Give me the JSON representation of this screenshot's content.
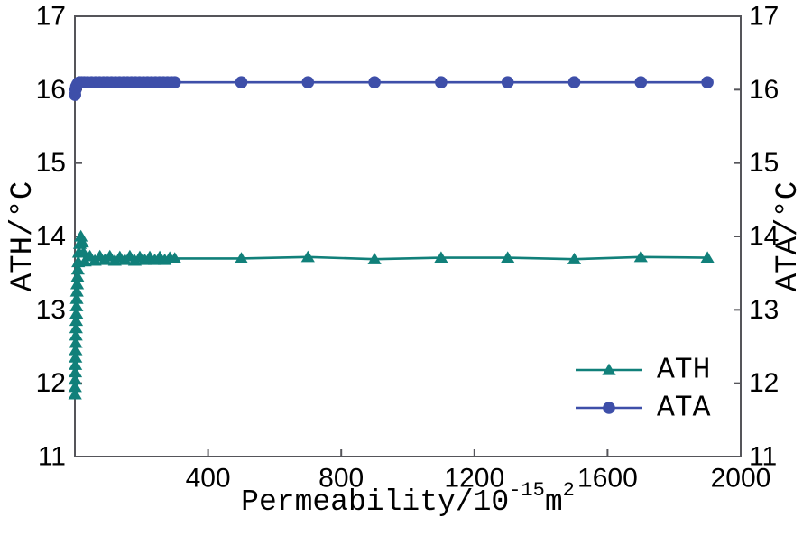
{
  "chart_data": {
    "type": "line",
    "title": "",
    "xlabel": "Permeability/10⁻¹⁵m²",
    "xlabel_parts": [
      {
        "t": "Permeability/10"
      },
      {
        "t": "-15",
        "sup": true
      },
      {
        "t": "m"
      },
      {
        "t": "2",
        "sup": true
      }
    ],
    "ylabel_left": "ATH/°C",
    "ylabel_right": "ATA/°C",
    "xlim": [
      0,
      2000
    ],
    "ylim": [
      11,
      17
    ],
    "x_ticks": [
      400,
      800,
      1200,
      1600,
      2000
    ],
    "y_ticks": [
      11,
      12,
      13,
      14,
      15,
      16,
      17
    ],
    "grid": false,
    "legend_position": "lower-right-inside",
    "series": [
      {
        "name": "ATH",
        "axis": "left",
        "marker": "triangle",
        "color": "#11807a",
        "x": [
          0.5,
          0.8,
          1.1,
          1.4,
          1.7,
          2,
          2.4,
          2.8,
          3.2,
          3.6,
          4,
          4.5,
          5,
          5.5,
          6,
          7,
          8,
          9,
          10,
          12,
          15,
          18,
          22,
          26,
          30,
          45,
          60,
          75,
          90,
          105,
          120,
          135,
          150,
          165,
          180,
          195,
          210,
          225,
          240,
          255,
          270,
          285,
          300,
          500,
          700,
          900,
          1100,
          1300,
          1500,
          1700,
          1900
        ],
        "y": [
          11.85,
          11.95,
          12.05,
          12.15,
          12.25,
          12.35,
          12.45,
          12.55,
          12.65,
          12.75,
          12.85,
          12.95,
          13.05,
          13.15,
          13.25,
          13.35,
          13.45,
          13.55,
          13.65,
          13.78,
          13.9,
          14.0,
          13.92,
          13.78,
          13.66,
          13.73,
          13.67,
          13.73,
          13.68,
          13.73,
          13.67,
          13.72,
          13.68,
          13.73,
          13.67,
          13.72,
          13.68,
          13.72,
          13.68,
          13.72,
          13.68,
          13.71,
          13.7,
          13.7,
          13.72,
          13.69,
          13.71,
          13.71,
          13.69,
          13.72,
          13.71
        ]
      },
      {
        "name": "ATA",
        "axis": "right",
        "marker": "circle",
        "color": "#3e4fa9",
        "x": [
          0.5,
          2,
          4,
          7,
          10,
          14,
          20,
          28,
          38,
          50,
          62,
          74,
          86,
          98,
          110,
          122,
          134,
          146,
          158,
          170,
          182,
          194,
          206,
          218,
          230,
          242,
          254,
          266,
          278,
          290,
          300,
          500,
          700,
          900,
          1100,
          1300,
          1500,
          1700,
          1900
        ],
        "y": [
          15.93,
          16.0,
          16.04,
          16.07,
          16.09,
          16.1,
          16.1,
          16.1,
          16.1,
          16.1,
          16.1,
          16.1,
          16.1,
          16.1,
          16.1,
          16.1,
          16.1,
          16.1,
          16.1,
          16.1,
          16.1,
          16.1,
          16.1,
          16.1,
          16.1,
          16.1,
          16.1,
          16.1,
          16.1,
          16.1,
          16.1,
          16.1,
          16.1,
          16.1,
          16.1,
          16.1,
          16.1,
          16.1,
          16.1
        ]
      }
    ]
  },
  "colors": {
    "background": "#ffffff",
    "frame": "#55555a",
    "text": "#000000",
    "ath": "#11807a",
    "ata": "#3e4fa9"
  }
}
